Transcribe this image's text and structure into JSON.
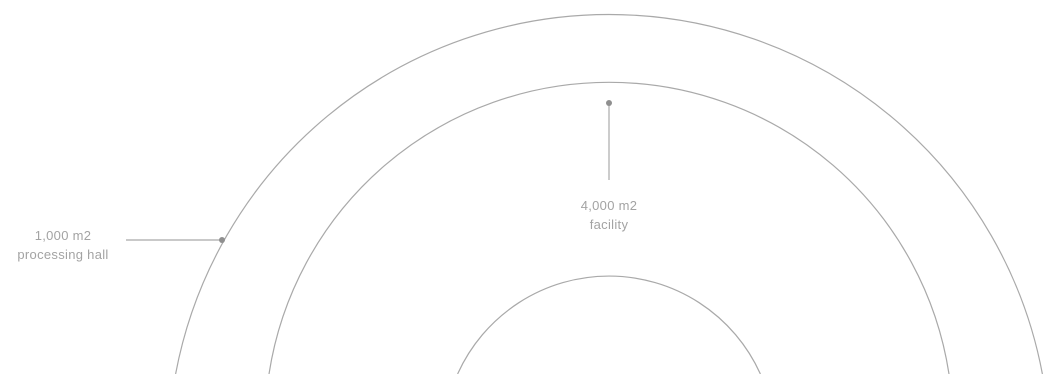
{
  "callouts": {
    "processing_hall": {
      "value": "1,000 m2",
      "caption": "processing hall"
    },
    "facility": {
      "value": "4,000 m2",
      "caption": "facility"
    }
  },
  "colors": {
    "lines": "#a9a9a9",
    "dots": "#8f8f8f",
    "text": "#a3a3a3",
    "background": "#ffffff"
  }
}
